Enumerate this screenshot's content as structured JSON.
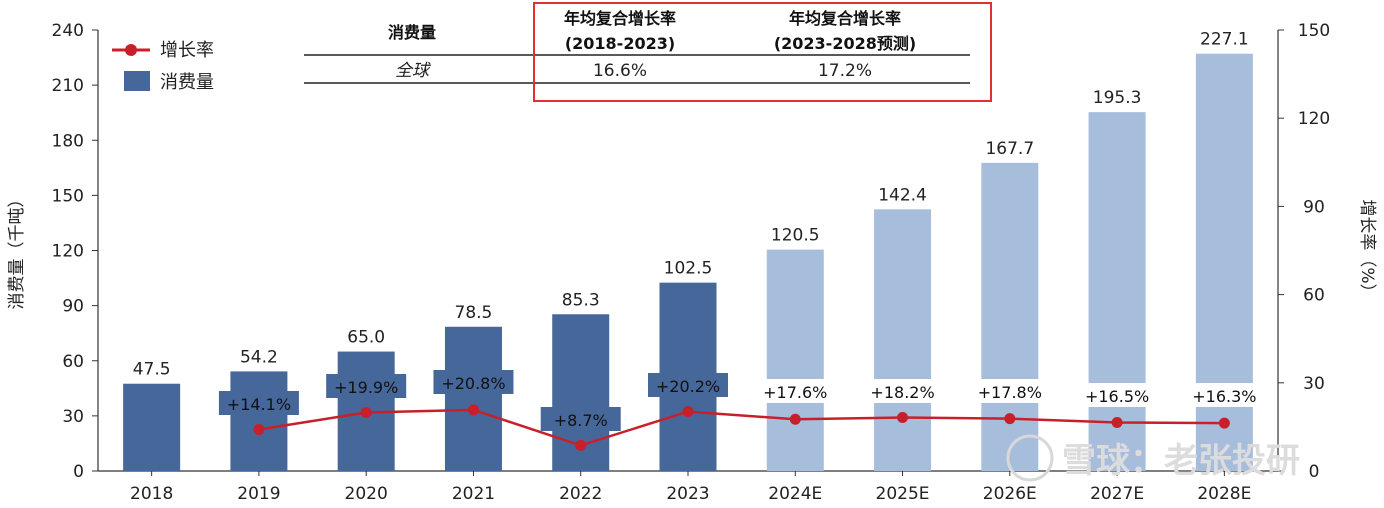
{
  "chart_data": {
    "type": "bar",
    "categories": [
      "2018",
      "2019",
      "2020",
      "2021",
      "2022",
      "2023",
      "2024E",
      "2025E",
      "2026E",
      "2027E",
      "2028E"
    ],
    "series": [
      {
        "name": "消费量",
        "type": "bar",
        "axis": "left",
        "values": [
          47.5,
          54.2,
          65.0,
          78.5,
          85.3,
          102.5,
          120.5,
          142.4,
          167.7,
          195.3,
          227.1
        ],
        "labels": [
          "47.5",
          "54.2",
          "65.0",
          "78.5",
          "85.3",
          "102.5",
          "120.5",
          "142.4",
          "167.7",
          "195.3",
          "227.1"
        ],
        "colors": {
          "actual": "#46679a",
          "forecast": "#a6bddc"
        }
      },
      {
        "name": "增长率",
        "type": "line",
        "axis": "right",
        "color": "#c8202a",
        "values": [
          null,
          14.1,
          19.9,
          20.8,
          8.7,
          20.2,
          17.6,
          18.2,
          17.8,
          16.5,
          16.3
        ],
        "labels": [
          "",
          "+14.1%",
          "+19.9%",
          "+20.8%",
          "+8.7%",
          "+20.2%",
          "+17.6%",
          "+18.2%",
          "+17.8%",
          "+16.5%",
          "+16.3%"
        ]
      }
    ],
    "ylabel": "消费量（千吨）",
    "y2label": "增长率（%）",
    "ylim": [
      0,
      240
    ],
    "yticks": [
      "0",
      "30",
      "60",
      "90",
      "120",
      "150",
      "180",
      "210",
      "240"
    ],
    "y2lim": [
      0,
      150
    ],
    "y2ticks": [
      "0",
      "30",
      "60",
      "90",
      "120",
      "150"
    ],
    "legend": {
      "position": "top-left",
      "items": [
        "增长率",
        "消费量"
      ]
    },
    "grid": false
  },
  "cagr_table": {
    "header": [
      "消费量",
      "年均复合增长率\n(2018-2023)",
      "年均复合增长率\n(2023-2028预测)"
    ],
    "rows": [
      [
        "全球",
        "16.6%",
        "17.2%"
      ]
    ],
    "highlight_color": "#e03030"
  },
  "watermark": "雪球：老张投研"
}
